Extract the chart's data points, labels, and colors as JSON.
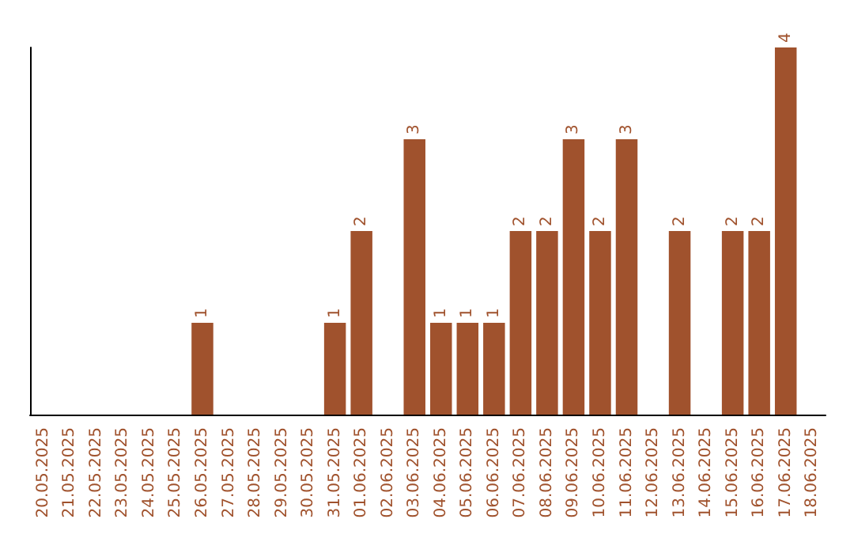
{
  "chart_data": {
    "type": "bar",
    "categories": [
      "20.05.2025",
      "21.05.2025",
      "22.05.2025",
      "23.05.2025",
      "24.05.2025",
      "25.05.2025",
      "26.05.2025",
      "27.05.2025",
      "28.05.2025",
      "29.05.2025",
      "30.05.2025",
      "31.05.2025",
      "01.06.2025",
      "02.06.2025",
      "03.06.2025",
      "04.06.2025",
      "05.06.2025",
      "06.06.2025",
      "07.06.2025",
      "08.06.2025",
      "09.06.2025",
      "10.06.2025",
      "11.06.2025",
      "12.06.2025",
      "13.06.2025",
      "14.06.2025",
      "15.06.2025",
      "16.06.2025",
      "17.06.2025",
      "18.06.2025"
    ],
    "values": [
      0,
      0,
      0,
      0,
      0,
      0,
      1,
      0,
      0,
      0,
      0,
      1,
      2,
      0,
      3,
      1,
      1,
      1,
      2,
      2,
      3,
      2,
      3,
      0,
      2,
      0,
      2,
      2,
      4,
      0
    ],
    "value_labels": [
      null,
      null,
      null,
      null,
      null,
      null,
      "1",
      null,
      null,
      null,
      null,
      "1",
      "2",
      null,
      "3",
      "1",
      "1",
      "1",
      "2",
      "2",
      "3",
      "2",
      "3",
      null,
      "2",
      null,
      "2",
      "2",
      "4",
      null
    ],
    "color": "#a0522d",
    "ylim": [
      0,
      4
    ],
    "tick_labels": "x"
  }
}
